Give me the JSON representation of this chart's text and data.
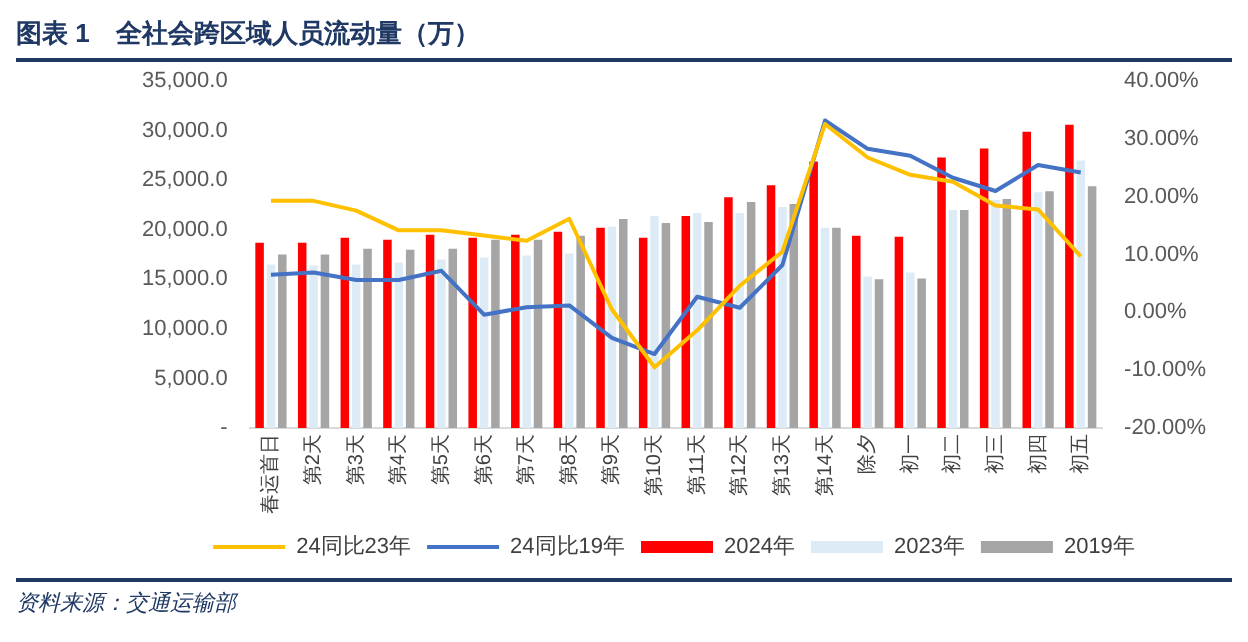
{
  "chart_data": {
    "type": "bar",
    "title": "图表 1　全社会跨区域人员流动量（万）",
    "categories": [
      "春运首日",
      "第2天",
      "第3天",
      "第4天",
      "第5天",
      "第6天",
      "第7天",
      "第8天",
      "第9天",
      "第10天",
      "第11天",
      "第12天",
      "第13天",
      "第14天",
      "除夕",
      "初一",
      "初二",
      "初三",
      "初四",
      "初五"
    ],
    "series": [
      {
        "name": "2024年",
        "color": "#ff0000",
        "values": [
          18700,
          18700,
          19200,
          19000,
          19500,
          19200,
          19500,
          19800,
          20200,
          19200,
          21400,
          23300,
          24500,
          26900,
          19400,
          19300,
          27300,
          28200,
          29900,
          30600
        ]
      },
      {
        "name": "2023年",
        "color": "#ddebf7",
        "values": [
          16500,
          16400,
          16500,
          16700,
          17000,
          17200,
          17400,
          17600,
          20300,
          21400,
          21700,
          21700,
          22300,
          20200,
          15300,
          15700,
          22000,
          23000,
          23800,
          27000
        ]
      },
      {
        "name": "2019年",
        "color": "#a5a5a5",
        "values": [
          17500,
          17500,
          18100,
          18000,
          18100,
          19000,
          19000,
          19400,
          21100,
          20700,
          20800,
          22800,
          22600,
          20200,
          15000,
          15100,
          22000,
          23100,
          23900,
          24400
        ]
      },
      {
        "name": "24同比23年",
        "type": "line",
        "axis": "y2",
        "color": "#ffc000",
        "values": [
          19.3,
          19.3,
          17.6,
          14.2,
          14.2,
          13.3,
          12.4,
          16.2,
          0.5,
          -9.5,
          -3.1,
          4.6,
          10.5,
          32.6,
          26.8,
          23.8,
          22.6,
          18.5,
          17.8,
          9.7
        ]
      },
      {
        "name": "24同比19年",
        "type": "line",
        "axis": "y2",
        "color": "#4472c4",
        "values": [
          6.5,
          6.9,
          5.6,
          5.6,
          7.2,
          -0.4,
          0.9,
          1.2,
          -4.4,
          -7.2,
          2.7,
          0.8,
          8.2,
          33.2,
          28.3,
          27.1,
          23.3,
          21.0,
          25.5,
          24.2
        ]
      }
    ],
    "ylim": [
      0,
      35000
    ],
    "yticks": [
      {
        "value": 0,
        "label": "-"
      },
      {
        "value": 5000,
        "label": "5,000.0"
      },
      {
        "value": 10000,
        "label": "10,000.0"
      },
      {
        "value": 15000,
        "label": "15,000.0"
      },
      {
        "value": 20000,
        "label": "20,000.0"
      },
      {
        "value": 25000,
        "label": "25,000.0"
      },
      {
        "value": 30000,
        "label": "30,000.0"
      },
      {
        "value": 35000,
        "label": "35,000.0"
      }
    ],
    "y2lim": [
      -20,
      40
    ],
    "y2ticks": [
      {
        "value": -20,
        "label": "-20.00%"
      },
      {
        "value": -10,
        "label": "-10.00%"
      },
      {
        "value": 0,
        "label": "0.00%"
      },
      {
        "value": 10,
        "label": "10.00%"
      },
      {
        "value": 20,
        "label": "20.00%"
      },
      {
        "value": 30,
        "label": "30.00%"
      },
      {
        "value": 40,
        "label": "40.00%"
      }
    ],
    "legend": "bottom",
    "annotations": [
      "资料来源：交通运输部"
    ]
  }
}
